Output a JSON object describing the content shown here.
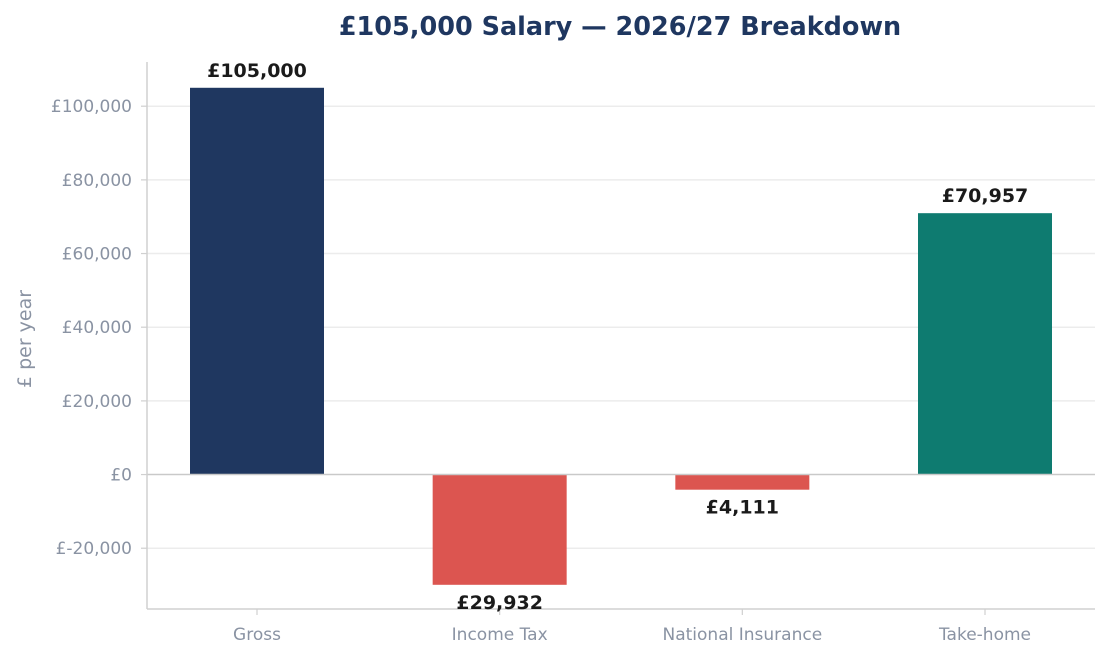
{
  "chart_data": {
    "type": "bar",
    "title": "£105,000 Salary — 2026/27 Breakdown",
    "xlabel": "",
    "ylabel": "£ per year",
    "categories": [
      "Gross",
      "Income Tax",
      "National Insurance",
      "Take-home"
    ],
    "values": [
      105000,
      -29932,
      -4111,
      70957
    ],
    "data_labels": [
      "£105,000",
      "£29,932",
      "£4,111",
      "£70,957"
    ],
    "bar_colors": [
      "#1f3760",
      "#dc5550",
      "#dc5550",
      "#0e7b70"
    ],
    "y_ticks": [
      -20000,
      0,
      20000,
      40000,
      60000,
      80000,
      100000
    ],
    "y_tick_labels": [
      "£-20,000",
      "£0",
      "£20,000",
      "£40,000",
      "£60,000",
      "£80,000",
      "£100,000"
    ],
    "ylim": [
      -36500,
      112000
    ],
    "grid": true,
    "legend": "none"
  },
  "colors": {
    "title": "#1f3760",
    "axis_text": "#8a93a3",
    "data_label": "#1a1a1a",
    "gridline": "#ececec",
    "axis_line": "#d0d0d0",
    "zero_line": "#c9c9c9"
  }
}
